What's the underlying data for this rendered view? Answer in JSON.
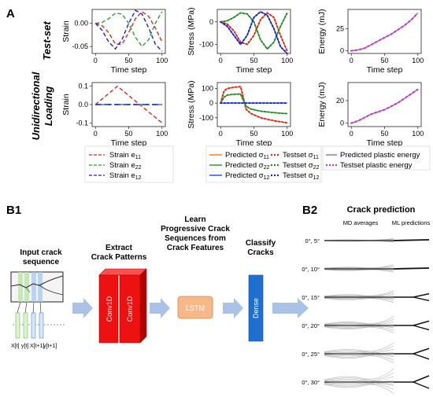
{
  "panel_labels": {
    "a": "A",
    "b1": "B1",
    "b2": "B2"
  },
  "row_labels": {
    "test": "Test-set",
    "uni_1": "Unidirectional",
    "uni_2": "Loading"
  },
  "colors": {
    "e11": "#d62728",
    "e22": "#2ca02c",
    "e12": "#9467bd",
    "pred11": "#ff7f0e",
    "pred22": "#2ca02c",
    "pred12": "#1f5fd6",
    "test11": "#d62728",
    "test22": "#2a8a2a",
    "test12": "#1f1fd6",
    "energy_pred": "#9467bd",
    "energy_test": "#c040c0"
  },
  "chart_data": [
    {
      "id": "strain_test",
      "type": "line",
      "xlabel": "Time step",
      "ylabel": "Strain",
      "xlim": [
        -5,
        105
      ],
      "ylim": [
        -0.065,
        0.03
      ],
      "xticks": [
        0,
        50,
        100
      ],
      "yticks": [
        0.0,
        -0.05
      ],
      "ytick_labels": [
        "0.00",
        "-0.05"
      ],
      "series": [
        {
          "name": "e11",
          "color": "#d62728",
          "dash": "5,3",
          "x": [
            0,
            10,
            20,
            30,
            40,
            50,
            60,
            70,
            80,
            90,
            100
          ],
          "y": [
            0.0,
            -0.005,
            -0.02,
            -0.045,
            -0.045,
            -0.02,
            0.01,
            0.025,
            0.015,
            -0.01,
            -0.04
          ]
        },
        {
          "name": "e22",
          "color": "#2ca02c",
          "dash": "5,3",
          "x": [
            0,
            10,
            20,
            30,
            40,
            50,
            60,
            70,
            80,
            90,
            100
          ],
          "y": [
            0.0,
            0.002,
            0.01,
            0.022,
            0.02,
            0.0,
            -0.03,
            -0.05,
            -0.035,
            0.0,
            0.025
          ]
        },
        {
          "name": "e12",
          "color": "#1f1fd6",
          "dash": "5,3",
          "x": [
            0,
            10,
            20,
            30,
            40,
            50,
            60,
            70,
            80,
            90,
            100
          ],
          "y": [
            0.0,
            -0.015,
            -0.04,
            -0.055,
            -0.035,
            0.0,
            0.028,
            0.02,
            -0.01,
            -0.045,
            -0.06
          ]
        }
      ]
    },
    {
      "id": "stress_test",
      "type": "line",
      "xlabel": "Time step",
      "ylabel": "Stress (MPa)",
      "xlim": [
        -5,
        105
      ],
      "ylim": [
        -140,
        55
      ],
      "xticks": [
        0,
        50,
        100
      ],
      "yticks": [
        0,
        -100
      ],
      "ytick_labels": [
        "0",
        "-100"
      ],
      "series": [
        {
          "name": "s11",
          "color": "#ff7f0e",
          "dash": "",
          "x": [
            0,
            10,
            20,
            30,
            40,
            50,
            60,
            70,
            80,
            90,
            100
          ],
          "y": [
            0,
            -10,
            -40,
            -90,
            -100,
            -60,
            10,
            40,
            20,
            -60,
            -130
          ]
        },
        {
          "name": "s22",
          "color": "#2ca02c",
          "dash": "",
          "x": [
            0,
            10,
            20,
            30,
            40,
            50,
            60,
            70,
            80,
            90,
            100
          ],
          "y": [
            0,
            5,
            20,
            40,
            35,
            0,
            -80,
            -120,
            -90,
            -20,
            40
          ]
        },
        {
          "name": "s12",
          "color": "#1f5fd6",
          "dash": "",
          "x": [
            0,
            10,
            20,
            30,
            40,
            50,
            60,
            70,
            80,
            90,
            100
          ],
          "y": [
            0,
            -20,
            -60,
            -100,
            -60,
            20,
            45,
            30,
            -30,
            -110,
            -140
          ]
        }
      ]
    },
    {
      "id": "energy_test",
      "type": "line",
      "xlabel": "Time step",
      "ylabel": "Energy (mJ)",
      "xlim": [
        -5,
        105
      ],
      "ylim": [
        -3,
        47
      ],
      "xticks": [
        0,
        50,
        100
      ],
      "yticks": [
        0,
        25
      ],
      "ytick_labels": [
        "0",
        "25"
      ],
      "series": [
        {
          "name": "energy",
          "color": "#9467bd",
          "dash": "",
          "x": [
            0,
            10,
            20,
            30,
            40,
            50,
            60,
            70,
            80,
            90,
            100
          ],
          "y": [
            0,
            1,
            3,
            7,
            11,
            15,
            19,
            24,
            29,
            35,
            43
          ]
        }
      ]
    },
    {
      "id": "strain_uni",
      "type": "line",
      "xlabel": "Time step",
      "ylabel": "Strain",
      "xlim": [
        -5,
        105
      ],
      "ylim": [
        -0.12,
        0.12
      ],
      "xticks": [
        0,
        50,
        100
      ],
      "yticks": [
        0.1,
        0.0,
        -0.1
      ],
      "ytick_labels": [
        "0.1",
        "0.0",
        "-0.1"
      ],
      "series": [
        {
          "name": "e11",
          "color": "#d62728",
          "dash": "5,3",
          "x": [
            0,
            33,
            100
          ],
          "y": [
            0.0,
            0.1,
            -0.1
          ]
        },
        {
          "name": "e22",
          "color": "#2ca02c",
          "dash": "5,3",
          "x": [
            0,
            100
          ],
          "y": [
            0.0,
            0.0
          ]
        },
        {
          "name": "e12",
          "color": "#1f1fd6",
          "dash": "8,4",
          "x": [
            0,
            100
          ],
          "y": [
            0.0,
            0.0
          ]
        }
      ]
    },
    {
      "id": "stress_uni",
      "type": "line",
      "xlabel": "Time step",
      "ylabel": "Stress (MPa)",
      "xlim": [
        -5,
        105
      ],
      "ylim": [
        -160,
        140
      ],
      "xticks": [
        0,
        50,
        100
      ],
      "yticks": [
        100,
        0,
        -100
      ],
      "ytick_labels": [
        "100",
        "0",
        "-100"
      ],
      "series": [
        {
          "name": "s11",
          "color": "#ff7f0e",
          "dash": "",
          "x": [
            0,
            5,
            10,
            20,
            30,
            33,
            38,
            45,
            60,
            80,
            100
          ],
          "y": [
            0,
            80,
            100,
            108,
            112,
            60,
            -40,
            -70,
            -100,
            -120,
            -135
          ]
        },
        {
          "name": "s22",
          "color": "#2ca02c",
          "dash": "",
          "x": [
            0,
            5,
            10,
            20,
            30,
            33,
            38,
            45,
            60,
            80,
            100
          ],
          "y": [
            0,
            40,
            55,
            60,
            62,
            30,
            -20,
            -40,
            -55,
            -65,
            -72
          ]
        },
        {
          "name": "s12",
          "color": "#1f5fd6",
          "dash": "",
          "x": [
            0,
            100
          ],
          "y": [
            0,
            0
          ]
        }
      ]
    },
    {
      "id": "energy_uni",
      "type": "line",
      "xlabel": "Time step",
      "ylabel": "Energy (mJ)",
      "xlim": [
        -5,
        105
      ],
      "ylim": [
        -3,
        36
      ],
      "xticks": [
        0,
        50,
        100
      ],
      "yticks": [
        0,
        20
      ],
      "ytick_labels": [
        "0",
        "20"
      ],
      "series": [
        {
          "name": "energy",
          "color": "#9467bd",
          "dash": "",
          "x": [
            0,
            10,
            20,
            30,
            40,
            50,
            60,
            70,
            80,
            90,
            100
          ],
          "y": [
            0,
            2,
            5,
            8,
            10,
            12,
            15,
            18,
            22,
            26,
            30
          ]
        }
      ]
    }
  ],
  "legends": {
    "strain": [
      "Strain",
      "Strain",
      "Strain"
    ],
    "strain_sym": [
      "e",
      "e",
      "e"
    ],
    "strain_sub": [
      "11",
      "22",
      "12"
    ],
    "pred": [
      "Predicted",
      "Predicted",
      "Predicted"
    ],
    "testset": [
      "Testset",
      "Testset",
      "Testset"
    ],
    "sigma": "σ",
    "sub": [
      "11",
      "22",
      "12"
    ],
    "energy": [
      "Predicted plastic energy",
      "Testset plastic energy"
    ]
  },
  "b1": {
    "input_line1": "Input crack",
    "input_line2": "sequence",
    "extract_line1": "Extract",
    "extract_line2": "Crack Patterns",
    "learn_line1": "Learn",
    "learn_line2": "Progressive Crack",
    "learn_line3": "Sequences from",
    "learn_line4": "Crack Features",
    "classify_line1": "Classify",
    "classify_line2": "Cracks",
    "conv1": "Conv1D",
    "conv2": "Conv1D",
    "lstm": "LSTM",
    "dense": "Dense",
    "col_labels": [
      "X[t]",
      "y[t]",
      "X[t+1]",
      "y[t+1]"
    ]
  },
  "b2": {
    "title": "Crack prediction",
    "col_md": "MD averages",
    "col_ml": "ML predictions",
    "rows": [
      "0°, 5°",
      "0°, 10°",
      "0°, 15°",
      "0°, 20°",
      "0°, 25°",
      "0°, 30°"
    ]
  }
}
